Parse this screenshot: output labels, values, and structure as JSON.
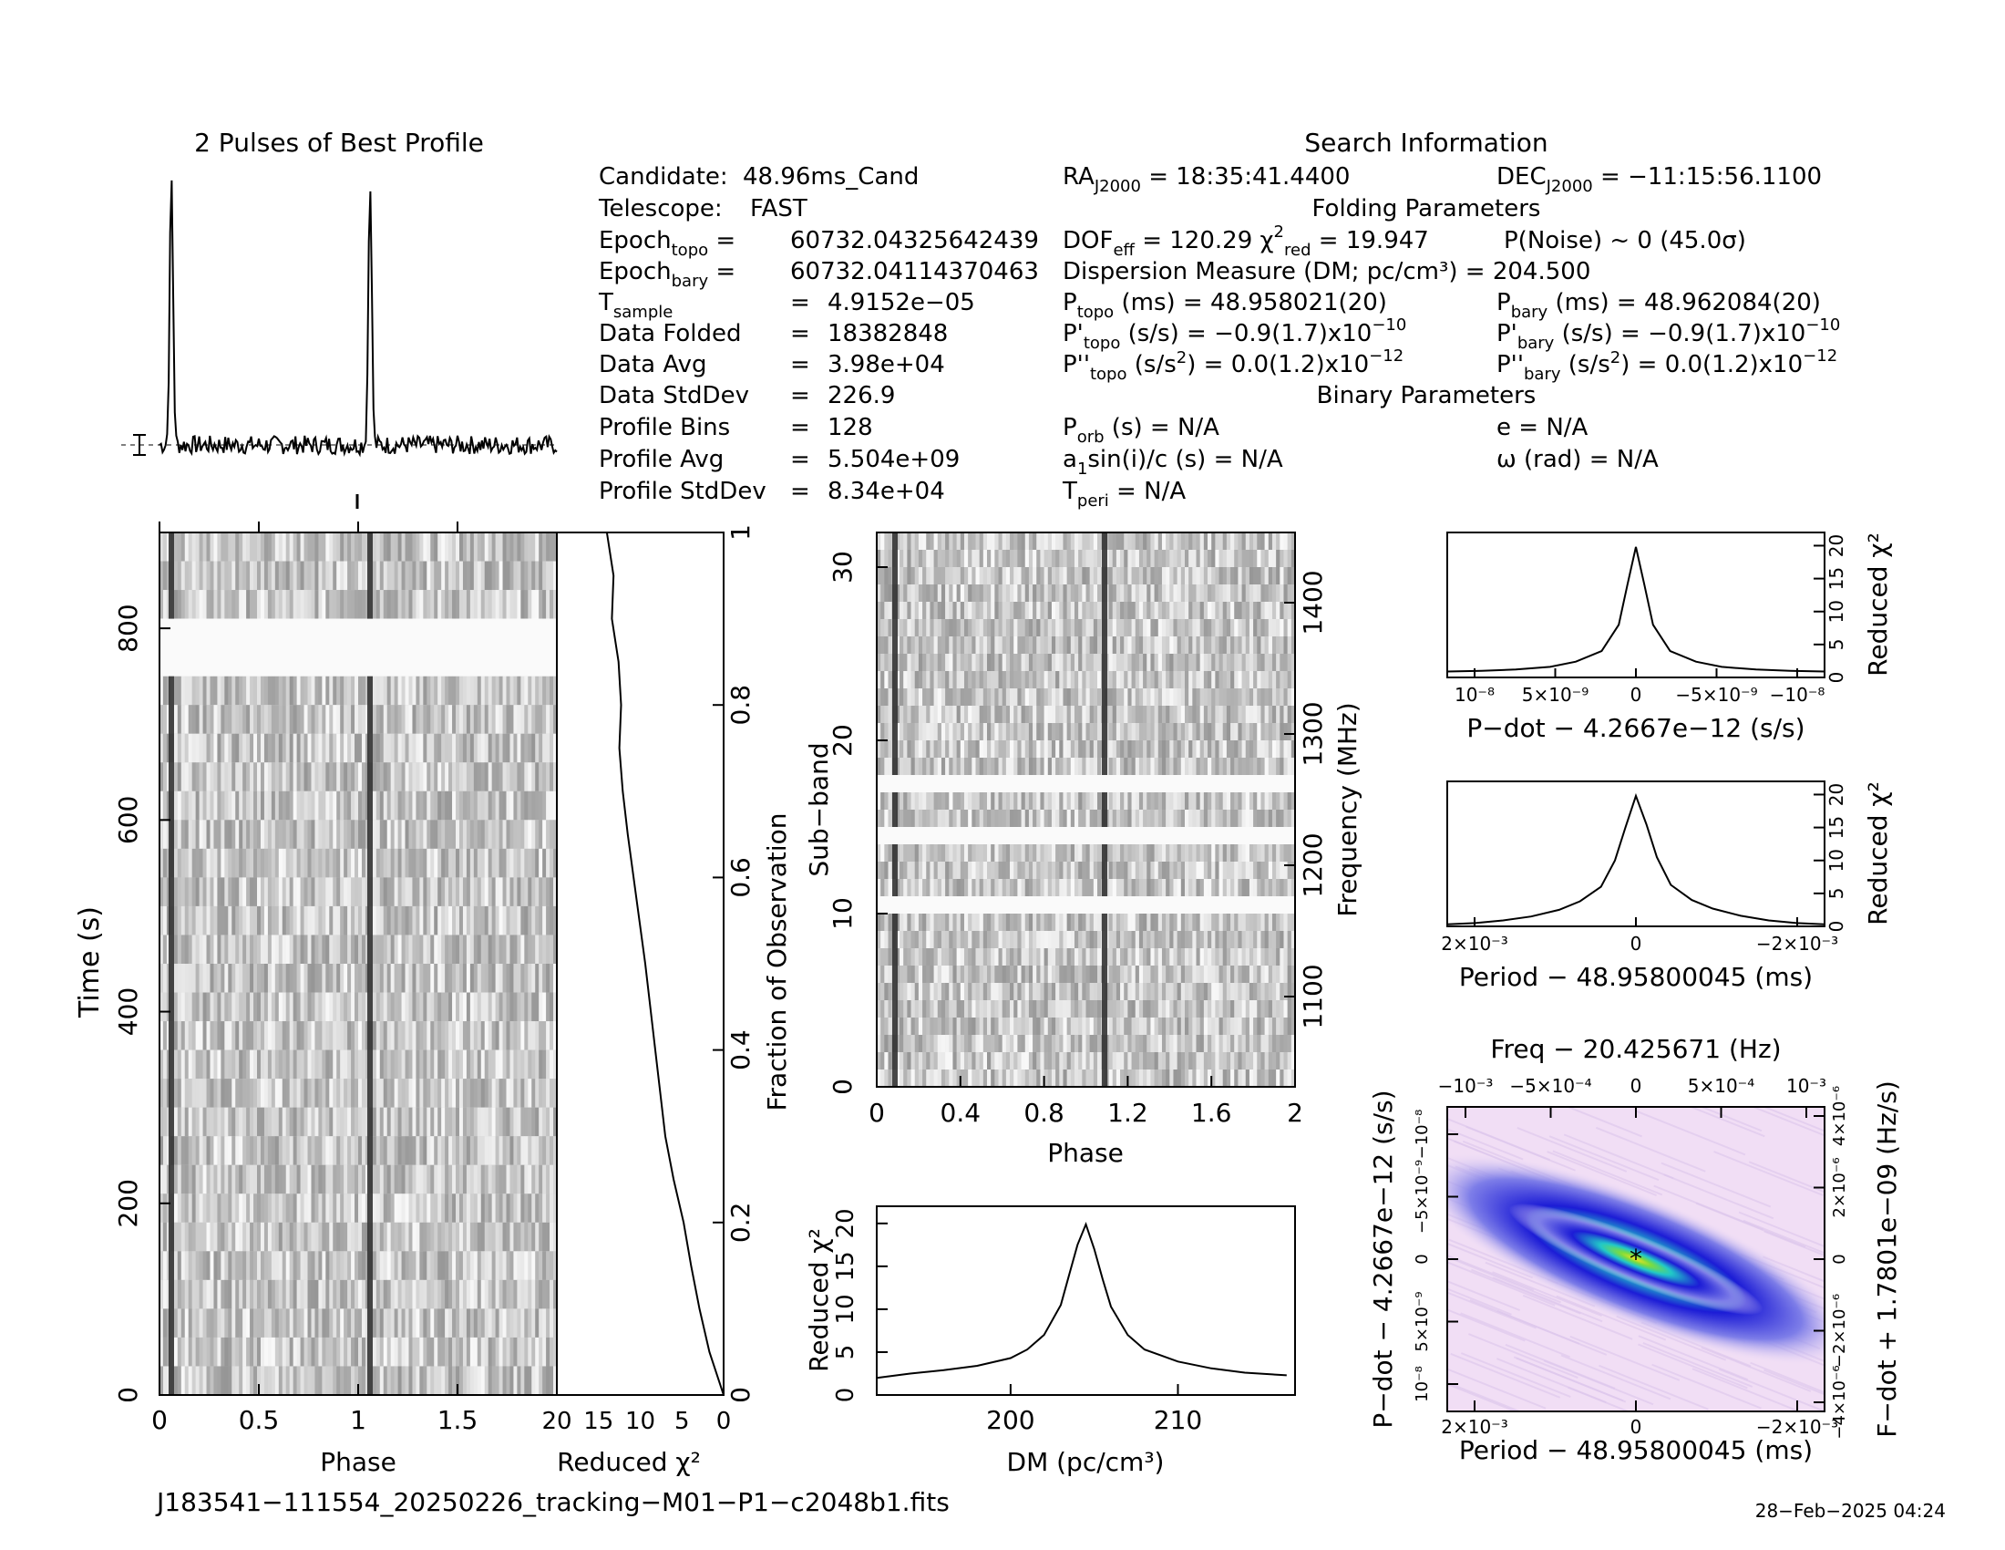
{
  "profile": {
    "title": "2 Pulses of Best Profile"
  },
  "search_info": {
    "title": "Search Information",
    "candidate": "48.96ms_Cand",
    "telescope": "FAST",
    "epoch_topo": "60732.04325642439",
    "epoch_bary": "60732.04114370463",
    "t_sample": "4.9152e−05",
    "data_folded": "18382848",
    "data_avg": "3.98e+04",
    "data_stddev": "226.9",
    "profile_bins": "128",
    "profile_avg": "5.504e+09",
    "profile_stddev": "8.34e+04",
    "ra": "18:35:41.4400",
    "dec": "−11:15:56.1100"
  },
  "folding": {
    "title": "Folding Parameters",
    "dof_eff": "120.29",
    "chi2_red": "19.947",
    "p_noise": "P(Noise) ~ 0    (45.0σ)",
    "dm_line": "Dispersion Measure (DM; pc/cm³) = 204.500",
    "p_topo": "48.958021(20)",
    "p_bary": "48.962084(20)",
    "pdot_topo": "−0.9(1.7)x10",
    "pdot_topo_exp": "−10",
    "pdot_bary": "−0.9(1.7)x10",
    "pdot_bary_exp": "−10",
    "pddot_topo": "0.0(1.2)x10",
    "pddot_topo_exp": "−12",
    "pddot_bary": "0.0(1.2)x10",
    "pddot_bary_exp": "−12"
  },
  "binary": {
    "title": "Binary Parameters",
    "p_orb": "N/A",
    "a1sini": "N/A",
    "t_peri": "N/A",
    "e": "N/A",
    "omega": "N/A"
  },
  "labels": {
    "time_s": "Time (s)",
    "phase": "Phase",
    "reduced_chi2": "Reduced χ²",
    "fraction_obs": "Fraction of Observation",
    "sub_band": "Sub−band",
    "frequency": "Frequency (MHz)",
    "dm_axis": "DM (pc/cm³)",
    "pdot_axis": "P−dot − 4.2667e−12 (s/s)",
    "period_axis": "Period − 48.95800045 (ms)",
    "freq_axis": "Freq − 20.425671 (Hz)",
    "fdot_axis": "F−dot + 1.7801e−09 (Hz/s)",
    "pdot_left": "P−dot − 4.2667e−12 (s/s)"
  },
  "footer": {
    "filename": "J183541−111554_20250226_tracking−M01−P1−c2048b1.fits",
    "date": "28−Feb−2025 04:24"
  },
  "colors": {
    "ink": "#000000",
    "heat_low": "#f3e1f7",
    "heat_mid": "#1c1cd6",
    "heat_high": "#7bdc3f"
  },
  "chart_data": [
    {
      "type": "line",
      "name": "profile",
      "x": [
        0,
        0.1,
        0.2,
        0.3,
        0.4,
        0.5,
        0.6,
        0.7,
        0.8,
        0.9,
        1.0,
        1.1,
        1.2,
        1.3,
        1.4,
        1.5,
        1.6,
        1.7,
        1.8,
        1.9,
        2.0
      ],
      "values": [
        0.02,
        1.0,
        0.03,
        0.01,
        0.0,
        0.02,
        0.01,
        0.02,
        0.0,
        0.01,
        0.02,
        1.0,
        0.03,
        0.01,
        0.0,
        0.02,
        0.01,
        0.02,
        0.0,
        0.01,
        0.02
      ]
    },
    {
      "type": "heatmap",
      "name": "time-phase",
      "xlabel": "Phase",
      "ylabel": "Time (s)",
      "xlim": [
        0,
        2
      ],
      "ylim": [
        0,
        900
      ],
      "x_ticks": [
        "0",
        "0.5",
        "1",
        "1.5"
      ],
      "y_ticks": [
        "0",
        "200",
        "400",
        "600",
        "800"
      ]
    },
    {
      "type": "line",
      "name": "reduced-chi2-vs-time",
      "xlabel": "Reduced χ²",
      "x_ticks": [
        "20",
        "15",
        "10",
        "5",
        "0"
      ],
      "y2_ticks": [
        "0",
        "0.2",
        "0.4",
        "0.6",
        "0.8",
        "1"
      ],
      "fraction": [
        0,
        0.05,
        0.1,
        0.15,
        0.2,
        0.25,
        0.3,
        0.35,
        0.4,
        0.45,
        0.5,
        0.55,
        0.6,
        0.65,
        0.7,
        0.75,
        0.8,
        0.85,
        0.9,
        0.95,
        1.0
      ],
      "chi2": [
        0,
        1.7,
        2.9,
        3.9,
        4.8,
        6.0,
        7.0,
        7.6,
        8.2,
        8.8,
        9.4,
        10.1,
        10.8,
        11.5,
        12.1,
        12.5,
        12.3,
        12.6,
        13.4,
        13.2,
        14.0
      ]
    },
    {
      "type": "heatmap",
      "name": "subband-phase",
      "xlabel": "Phase",
      "ylabel": "Sub−band",
      "xlim": [
        0,
        2
      ],
      "ylim": [
        0,
        32
      ],
      "x_ticks": [
        "0",
        "0.4",
        "0.8",
        "1.2",
        "1.6",
        "2"
      ],
      "y_ticks": [
        "0",
        "10",
        "20",
        "30"
      ],
      "y2_ticks": [
        "1100",
        "1200",
        "1300",
        "1400"
      ]
    },
    {
      "type": "line",
      "name": "dm-curve",
      "xlabel": "DM (pc/cm³)",
      "ylabel": "Reduced χ²",
      "x": [
        192.0,
        194.0,
        196.0,
        198.0,
        200.0,
        201.0,
        202.0,
        203.0,
        203.5,
        204.0,
        204.5,
        205.0,
        205.5,
        206.0,
        207.0,
        208.0,
        210.0,
        212.0,
        214.0,
        216.5
      ],
      "y": [
        2.0,
        2.5,
        2.9,
        3.4,
        4.3,
        5.3,
        7.0,
        10.5,
        14.0,
        17.5,
        19.9,
        17.0,
        13.5,
        10.3,
        7.0,
        5.3,
        3.9,
        3.1,
        2.6,
        2.3
      ],
      "xlim": [
        192,
        217
      ],
      "ylim": [
        0,
        22
      ],
      "x_ticks": [
        "200",
        "210"
      ],
      "y_ticks": [
        "0",
        "5",
        "10",
        "15",
        "20"
      ]
    },
    {
      "type": "line",
      "name": "pdot-curve",
      "xlabel": "P−dot − 4.2667e−12 (s/s)",
      "ylabel": "Reduced χ²",
      "x": [
        1.1,
        0.9,
        0.7,
        0.5,
        0.35,
        0.2,
        0.1,
        0.05,
        0,
        -0.05,
        -0.1,
        -0.2,
        -0.35,
        -0.5,
        -0.7,
        -0.9,
        -1.1
      ],
      "y": [
        0.9,
        1.0,
        1.2,
        1.6,
        2.4,
        4.0,
        8.0,
        14.0,
        19.8,
        14.0,
        8.0,
        4.0,
        2.4,
        1.6,
        1.2,
        1.0,
        0.9
      ],
      "x_ticks": [
        "10⁻⁸",
        "5×10⁻⁹",
        "0",
        "−5×10⁻⁹",
        "−10⁻⁸"
      ],
      "y_ticks": [
        "0",
        "5",
        "10",
        "15",
        "20"
      ]
    },
    {
      "type": "line",
      "name": "period-curve",
      "xlabel": "Period − 48.95800045 (ms)",
      "ylabel": "Reduced χ²",
      "x": [
        2.7,
        2.3,
        1.9,
        1.5,
        1.1,
        0.8,
        0.5,
        0.3,
        0.15,
        0,
        -0.15,
        -0.3,
        -0.5,
        -0.8,
        -1.1,
        -1.5,
        -1.9,
        -2.3,
        -2.7
      ],
      "y": [
        0.3,
        0.5,
        0.9,
        1.5,
        2.5,
        3.8,
        6.0,
        10.0,
        15.0,
        19.8,
        15.5,
        10.5,
        6.3,
        4.0,
        2.7,
        1.6,
        0.9,
        0.5,
        0.3
      ],
      "x_ticks": [
        "2×10⁻³",
        "0",
        "−2×10⁻³"
      ],
      "y_ticks": [
        "0",
        "5",
        "10",
        "15",
        "20"
      ]
    },
    {
      "type": "heatmap",
      "name": "period-pdot-plane",
      "xlabel": "Period − 48.95800045 (ms)",
      "ylabel": "P−dot − 4.2667e−12 (s/s)",
      "top_ticks": [
        "−10⁻³",
        "−5×10⁻⁴",
        "0",
        "5×10⁻⁴",
        "10⁻³"
      ],
      "bottom_ticks": [
        "2×10⁻³",
        "0",
        "−2×10⁻³"
      ],
      "left_ticks": [
        "10⁻⁸",
        "5×10⁻⁹",
        "0",
        "−5×10⁻⁹",
        "−10⁻⁸"
      ],
      "right_ticks": [
        "−4×10⁻⁶",
        "−2×10⁻⁶",
        "0",
        "2×10⁻⁶",
        "4×10⁻⁶"
      ]
    }
  ]
}
